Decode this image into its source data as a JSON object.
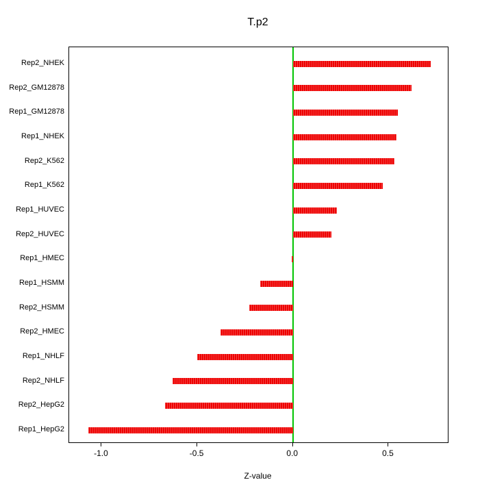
{
  "chart_data": {
    "type": "bar",
    "orientation": "horizontal",
    "title": "T.p2",
    "xlabel": "Z-value",
    "ylabel": "",
    "categories_top_to_bottom": [
      "Rep2_NHEK",
      "Rep2_GM12878",
      "Rep1_GM12878",
      "Rep1_NHEK",
      "Rep2_K562",
      "Rep1_K562",
      "Rep1_HUVEC",
      "Rep2_HUVEC",
      "Rep1_HMEC",
      "Rep1_HSMM",
      "Rep2_HSMM",
      "Rep2_HMEC",
      "Rep1_NHLF",
      "Rep2_NHLF",
      "Rep2_HepG2",
      "Rep1_HepG2"
    ],
    "values": [
      0.72,
      0.62,
      0.55,
      0.54,
      0.53,
      0.47,
      0.23,
      0.2,
      -0.005,
      -0.17,
      -0.23,
      -0.38,
      -0.5,
      -0.63,
      -0.67,
      -1.07
    ],
    "xlim": [
      -1.17,
      0.81
    ],
    "xticks": [
      -1.0,
      -0.5,
      0.0,
      0.5
    ],
    "xtick_labels": [
      "-1.0",
      "-0.5",
      "0.0",
      "0.5"
    ],
    "grid": false,
    "legend": "none",
    "bar_color": "#EE0000",
    "zero_line_color": "#00C400",
    "background_color": "#FFFFFF"
  }
}
